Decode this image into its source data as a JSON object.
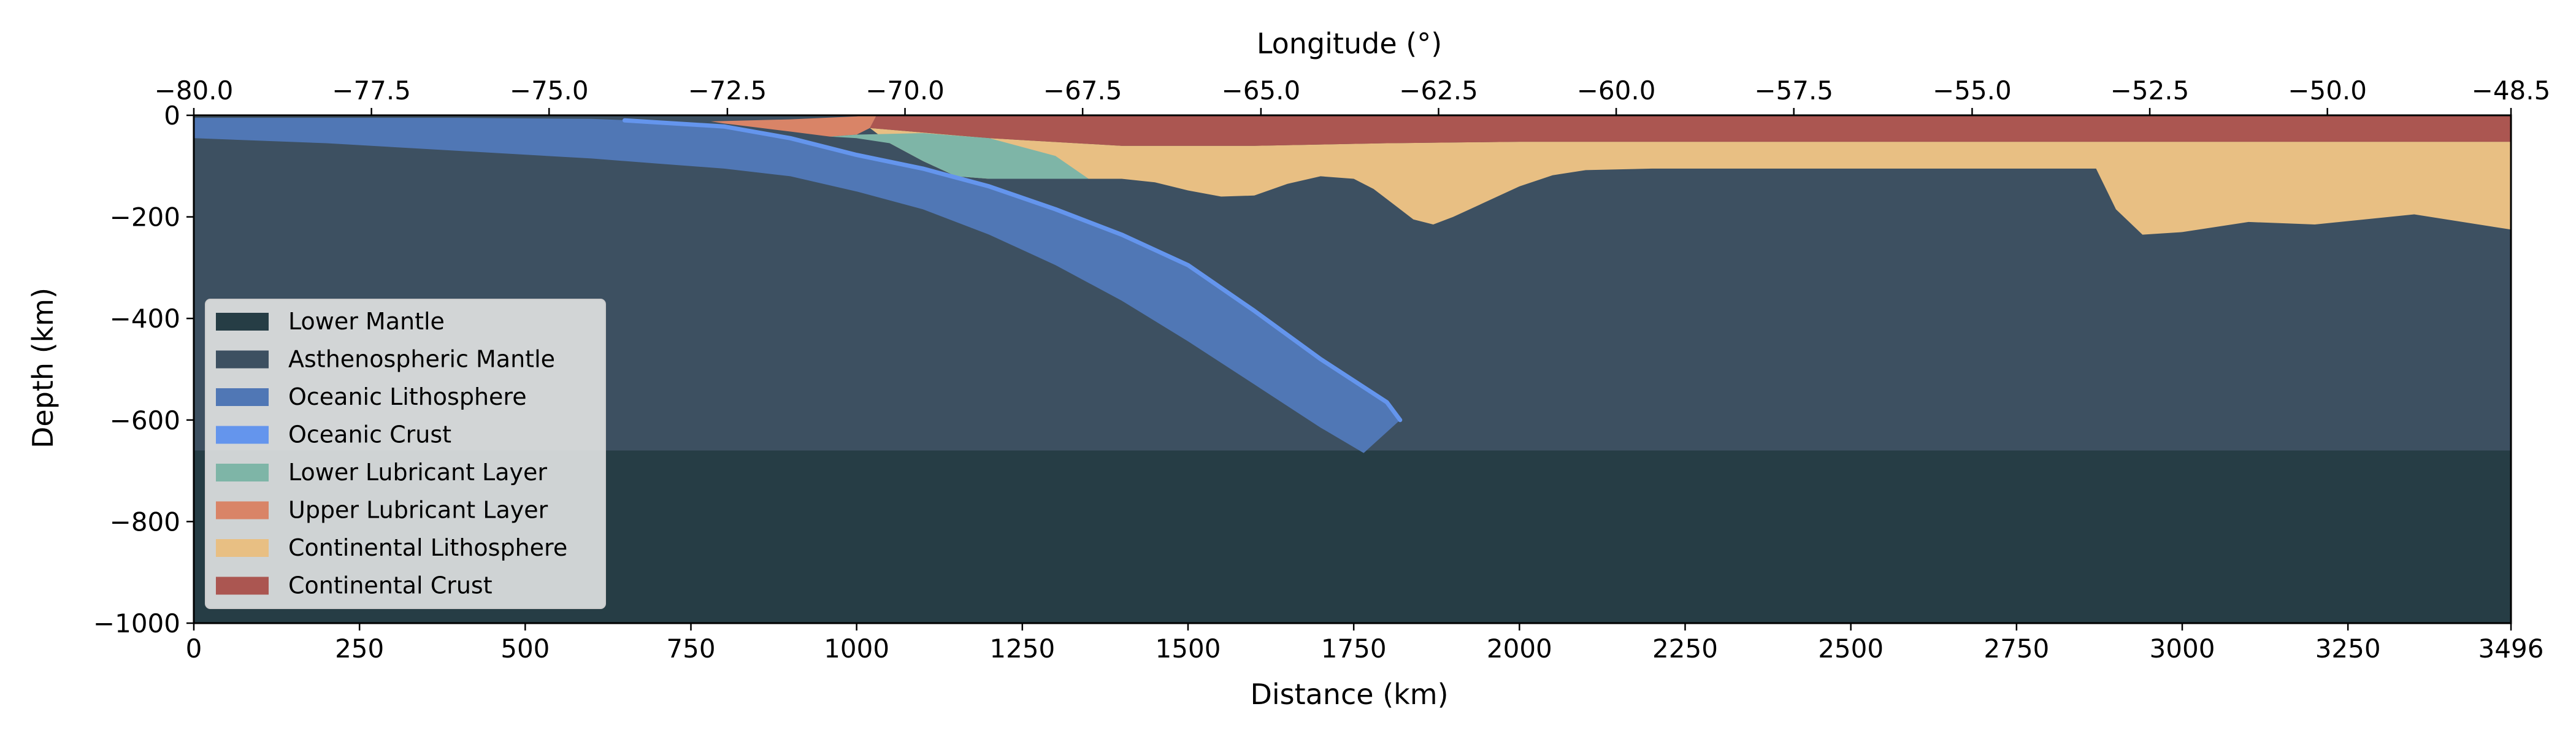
{
  "chart_data": {
    "type": "area",
    "title": "",
    "xlabel": "Distance (km)",
    "ylabel": "Depth (km)",
    "x2label": "Longitude (°)",
    "xlim": [
      0,
      3496
    ],
    "ylim": [
      -1000,
      0
    ],
    "x_ticks": [
      0,
      250,
      500,
      750,
      1000,
      1250,
      1500,
      1750,
      2000,
      2250,
      2500,
      2750,
      3000,
      3250,
      3496
    ],
    "x_tick_labels": [
      "0",
      "250",
      "500",
      "750",
      "1000",
      "1250",
      "1500",
      "1750",
      "2000",
      "2250",
      "2500",
      "2750",
      "3000",
      "3250",
      "3496"
    ],
    "y_ticks": [
      0,
      -200,
      -400,
      -600,
      -800,
      -1000
    ],
    "y_tick_labels": [
      "0",
      "−200",
      "−400",
      "−600",
      "−800",
      "−1000"
    ],
    "x2_ticks_km": [
      0,
      268,
      536,
      805,
      1073,
      1341,
      1610,
      1878,
      2146,
      2414,
      2683,
      2951,
      3219,
      3496
    ],
    "x2_tick_labels": [
      "−80.0",
      "−77.5",
      "−75.0",
      "−72.5",
      "−70.0",
      "−67.5",
      "−65.0",
      "−62.5",
      "−60.0",
      "−57.5",
      "−55.0",
      "−52.5",
      "−50.0",
      "−48.5"
    ],
    "grid": false,
    "legend_position": "lower-left",
    "series": [
      {
        "name": "Lower Mantle",
        "color": "#263d45",
        "x": [
          0,
          3496,
          3496,
          0
        ],
        "y": [
          -660,
          -660,
          -1000,
          -1000
        ]
      },
      {
        "name": "Asthenospheric Mantle",
        "color": "#3d5061",
        "x": [
          0,
          3496,
          3496,
          0
        ],
        "y": [
          0,
          0,
          -660,
          -660
        ]
      },
      {
        "name": "Continental Lithosphere",
        "color": "#e8bf83",
        "x": [
          1020,
          1200,
          1400,
          1600,
          1800,
          2000,
          2500,
          3000,
          3496,
          3496,
          3350,
          3200,
          3100,
          3000,
          2940,
          2900,
          2870,
          2500,
          2200,
          2100,
          2050,
          2000,
          1950,
          1900,
          1870,
          1840,
          1810,
          1780,
          1750,
          1700,
          1650,
          1600,
          1550,
          1500,
          1450,
          1400,
          1350,
          1300,
          1250,
          1200,
          1150,
          1100,
          1050
        ],
        "y": [
          -25,
          -45,
          -60,
          -60,
          -55,
          -52,
          -52,
          -52,
          -52,
          -225,
          -195,
          -215,
          -210,
          -230,
          -235,
          -185,
          -105,
          -105,
          -105,
          -108,
          -118,
          -140,
          -170,
          -200,
          -215,
          -205,
          -175,
          -145,
          -125,
          -120,
          -135,
          -158,
          -160,
          -148,
          -132,
          -125,
          -125,
          -125,
          -125,
          -125,
          -120,
          -90,
          -55
        ]
      },
      {
        "name": "Continental Crust",
        "color": "#ab5651",
        "x": [
          1030,
          1100,
          1400,
          2000,
          3496,
          3496,
          3000,
          2500,
          2000,
          1800,
          1600,
          1400,
          1200,
          1020
        ],
        "y": [
          0,
          0,
          0,
          0,
          0,
          -52,
          -52,
          -52,
          -52,
          -55,
          -60,
          -60,
          -45,
          -25
        ]
      },
      {
        "name": "Upper Lubricant Layer",
        "color": "#d98467",
        "x": [
          780,
          900,
          1000,
          1030,
          1020,
          1000,
          960,
          900,
          850,
          800
        ],
        "y": [
          -12,
          -8,
          -2,
          0,
          -25,
          -38,
          -42,
          -32,
          -24,
          -16
        ]
      },
      {
        "name": "Lower Lubricant Layer",
        "color": "#7eb5a7",
        "x": [
          960,
          1000,
          1100,
          1200,
          1300,
          1350,
          1300,
          1250,
          1200,
          1150,
          1100,
          1050,
          1000
        ],
        "y": [
          -42,
          -38,
          -35,
          -45,
          -80,
          -125,
          -125,
          -125,
          -125,
          -120,
          -90,
          -55,
          -45
        ]
      },
      {
        "name": "Oceanic Lithosphere",
        "color": "#5077b5",
        "x": [
          0,
          200,
          400,
          600,
          700,
          800,
          900,
          1000,
          1100,
          1200,
          1300,
          1400,
          1500,
          1600,
          1700,
          1800,
          1820,
          1765,
          1700,
          1600,
          1500,
          1400,
          1300,
          1200,
          1100,
          1000,
          900,
          800,
          700,
          600,
          400,
          200,
          0
        ],
        "y": [
          -5,
          -5,
          -5,
          -7,
          -12,
          -22,
          -45,
          -78,
          -105,
          -140,
          -185,
          -235,
          -295,
          -385,
          -480,
          -565,
          -600,
          -665,
          -615,
          -530,
          -445,
          -365,
          -295,
          -235,
          -185,
          -150,
          -120,
          -105,
          -95,
          -85,
          -70,
          -55,
          -45
        ]
      },
      {
        "name": "Oceanic Crust",
        "color": "#6495ed",
        "x": [
          650,
          800,
          900,
          1000,
          1100,
          1200,
          1300,
          1400,
          1500,
          1600,
          1700,
          1800,
          1820
        ],
        "y": [
          -10,
          -22,
          -45,
          -78,
          -105,
          -140,
          -185,
          -235,
          -295,
          -385,
          -480,
          -565,
          -600
        ]
      }
    ]
  }
}
